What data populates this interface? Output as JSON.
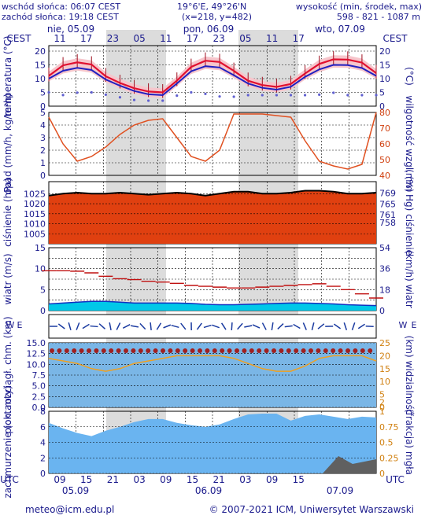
{
  "header": {
    "sunrise": "wschód słońca: 06:07 CEST",
    "sunset": "zachód słońca: 19:18 CEST",
    "coords": "19°6'E, 49°26'N",
    "grid": "(x=218, y=482)",
    "elevation_label": "wysokość (min, środek, max)",
    "elevation_values": "598 - 821 - 1087 m"
  },
  "time_axis": {
    "timezone": "CEST",
    "top_hours": [
      "11",
      "17",
      "23",
      "05",
      "11",
      "17",
      "23",
      "05",
      "11",
      "17"
    ],
    "top_days": [
      "nie, 05.09",
      "pon, 06.09",
      "wto, 07.09"
    ],
    "bottom_hours": [
      "09",
      "15",
      "21",
      "03",
      "09",
      "15",
      "21",
      "03",
      "09",
      "15"
    ],
    "bottom_days": [
      "05.09",
      "06.09",
      "07.09"
    ],
    "bottom_tz": "UTC"
  },
  "footer": {
    "email": "meteo@icm.edu.pl",
    "copyright": "© 2007-2021 ICM, Uniwersytet Warszawski"
  },
  "colors": {
    "night": "#dcdcdc",
    "temp_line": "#e01030",
    "temp_min": "#2020c0",
    "pressure_fill": "#e04010",
    "wind_fill": "#00c8e8",
    "wind_line": "#1030c0",
    "cloud_fill": "#6ab4f0",
    "humidity_line": "#e05020",
    "visibility_line": "#f0a020"
  },
  "chart_data": [
    {
      "type": "line",
      "panel": "temperature",
      "ylabel": "temperatura (°C)",
      "ylim": [
        0,
        22
      ],
      "yticks": [
        0,
        5,
        10,
        15,
        20
      ],
      "x_hours_from_start": [
        0,
        3,
        6,
        9,
        12,
        15,
        18,
        21,
        24,
        27,
        30,
        33,
        36,
        39,
        42,
        45,
        48,
        51,
        54,
        57,
        60,
        63,
        66
      ],
      "series": [
        {
          "name": "mean",
          "values": [
            11,
            15,
            16,
            15,
            10,
            8,
            6,
            5,
            5,
            12,
            16,
            17,
            15,
            10,
            8,
            7,
            7,
            11,
            15,
            17,
            17,
            16,
            12
          ]
        },
        {
          "name": "min",
          "values": [
            10,
            13,
            14,
            13,
            9,
            7,
            5,
            4,
            4,
            11,
            14,
            15,
            13,
            9,
            7,
            6,
            6,
            10,
            13,
            15,
            15,
            14,
            11
          ]
        },
        {
          "name": "dew",
          "values": [
            5,
            4,
            5,
            5,
            4,
            3,
            2,
            2,
            2,
            5,
            5,
            4,
            3,
            4,
            4,
            4,
            4,
            4,
            4,
            5,
            4,
            4,
            4
          ]
        }
      ]
    },
    {
      "type": "line",
      "panel": "precipitation",
      "ylabel": "opad (mm/h, kg/m²h)",
      "ylabel_right": "wilgotność wzgl. (%)",
      "ylim": [
        0,
        5
      ],
      "ylim_right": [
        40,
        80
      ],
      "yticks": [
        0,
        1,
        2,
        3,
        4,
        5
      ],
      "yticks_right": [
        40,
        50,
        60,
        70,
        80
      ],
      "series": [
        {
          "name": "humidity",
          "values": [
            77,
            60,
            49,
            52,
            58,
            66,
            72,
            75,
            76,
            64,
            52,
            49,
            56,
            79,
            79,
            79,
            78,
            77,
            62,
            49,
            46,
            44,
            47,
            80
          ]
        }
      ]
    },
    {
      "type": "area",
      "panel": "pressure",
      "ylabel": "ciśnienie (hPa)",
      "ylabel_right": "(mm Hg) ciśnienie",
      "ylim": [
        1000,
        1031
      ],
      "yticks": [
        1005,
        1010,
        1015,
        1020,
        1025
      ],
      "yticks_right": [
        758,
        761,
        765,
        769
      ],
      "values": [
        1024,
        1025,
        1025.5,
        1025,
        1025,
        1025.5,
        1025,
        1024.5,
        1025,
        1025.5,
        1025,
        1024,
        1025,
        1026,
        1026,
        1025,
        1025,
        1025.5,
        1026.5,
        1026.5,
        1026,
        1025,
        1025,
        1025.5
      ]
    },
    {
      "type": "area",
      "panel": "wind",
      "ylabel": "wiatr (m/s)",
      "ylabel_right": "(km/h) wiatr",
      "ylim": [
        0,
        15
      ],
      "yticks": [
        0,
        2.5,
        5,
        7.5,
        10,
        12.5,
        15
      ],
      "yticks_right": [
        0,
        18,
        36,
        54
      ],
      "series": [
        {
          "name": "speed",
          "values": [
            1.6,
            1.8,
            2.0,
            2.2,
            2.2,
            2.0,
            1.8,
            1.8,
            1.8,
            1.8,
            1.7,
            1.5,
            1.4,
            1.4,
            1.5,
            1.6,
            1.7,
            1.8,
            1.8,
            1.7,
            1.6,
            1.4,
            1.3,
            1.2
          ]
        },
        {
          "name": "gusts",
          "values": [
            9.5,
            9.5,
            9.4,
            9.0,
            8.2,
            7.6,
            7.4,
            7.0,
            6.8,
            6.5,
            6.0,
            5.8,
            5.6,
            5.4,
            5.4,
            5.6,
            5.8,
            6.0,
            6.2,
            6.4,
            5.8,
            5.0,
            4.0,
            3.0
          ]
        }
      ]
    },
    {
      "type": "scatter",
      "panel": "visibility",
      "ylabel": "pion. rozciągł. chm. (km)",
      "ylabel_right": "(km) widzialność",
      "ylim": [
        0,
        15
      ],
      "yticks": [
        0,
        2.5,
        5,
        7.5,
        10,
        12.5,
        15
      ],
      "yticks_right": [
        0,
        2,
        5,
        10,
        15,
        20,
        25
      ],
      "visibility_km": [
        19,
        18,
        17,
        15,
        14,
        15,
        17,
        18,
        19,
        20,
        20,
        20,
        20,
        19,
        17,
        15,
        14,
        14,
        16,
        19,
        20,
        20,
        20,
        18
      ]
    },
    {
      "type": "area",
      "panel": "cloud",
      "ylabel": "zachmurzenie (oktanty)",
      "ylabel_right": "(frakcja) mgła",
      "ylim": [
        0,
        8
      ],
      "yticks": [
        0,
        2,
        4,
        6,
        8
      ],
      "yticks_right": [
        0,
        0.25,
        0.5,
        0.75,
        1
      ],
      "values": [
        6.5,
        5.8,
        5.2,
        4.8,
        5.5,
        6.0,
        6.6,
        7.0,
        7.0,
        6.5,
        6.2,
        6.0,
        6.3,
        7.0,
        7.6,
        7.7,
        7.7,
        6.8,
        7.4,
        7.6,
        7.3,
        7.0,
        7.3,
        7.2
      ]
    }
  ]
}
